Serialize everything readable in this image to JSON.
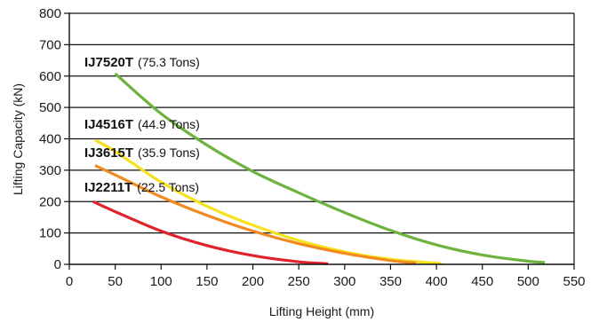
{
  "chart_data": {
    "type": "line",
    "xlabel": "Lifting Height (mm)",
    "ylabel": "Lifting Capacity (kN)",
    "xlim": [
      0,
      550
    ],
    "ylim": [
      0,
      800
    ],
    "xticks": [
      "0",
      "50",
      "100",
      "150",
      "200",
      "250",
      "300",
      "350",
      "400",
      "450",
      "500",
      "550"
    ],
    "yticks": [
      "0",
      "100",
      "200",
      "300",
      "400",
      "500",
      "600",
      "700",
      "800"
    ],
    "grid": "horizontal",
    "series": [
      {
        "name": "IJ7520T",
        "capacity": "(75.3 Tons)",
        "color": "#6db33f",
        "points": [
          [
            50,
            608
          ],
          [
            100,
            480
          ],
          [
            150,
            380
          ],
          [
            200,
            296
          ],
          [
            250,
            228
          ],
          [
            300,
            165
          ],
          [
            350,
            108
          ],
          [
            400,
            62
          ],
          [
            450,
            30
          ],
          [
            500,
            10
          ],
          [
            518,
            6
          ]
        ]
      },
      {
        "name": "IJ4516T",
        "capacity": "(44.9 Tons)",
        "color": "#f6e21c",
        "points": [
          [
            28,
            396
          ],
          [
            50,
            360
          ],
          [
            100,
            262
          ],
          [
            150,
            185
          ],
          [
            200,
            125
          ],
          [
            250,
            76
          ],
          [
            300,
            40
          ],
          [
            350,
            16
          ],
          [
            400,
            4
          ],
          [
            405,
            3
          ]
        ]
      },
      {
        "name": "IJ3615T",
        "capacity": "(35.9 Tons)",
        "color": "#f08a21",
        "points": [
          [
            28,
            315
          ],
          [
            50,
            285
          ],
          [
            100,
            215
          ],
          [
            150,
            156
          ],
          [
            200,
            106
          ],
          [
            250,
            66
          ],
          [
            300,
            35
          ],
          [
            350,
            12
          ],
          [
            378,
            4
          ]
        ]
      },
      {
        "name": "IJ2211T",
        "capacity": "(22.5 Tons)",
        "color": "#e0222a",
        "points": [
          [
            26,
            200
          ],
          [
            50,
            168
          ],
          [
            100,
            106
          ],
          [
            150,
            60
          ],
          [
            200,
            28
          ],
          [
            250,
            8
          ],
          [
            282,
            2
          ]
        ]
      }
    ]
  }
}
